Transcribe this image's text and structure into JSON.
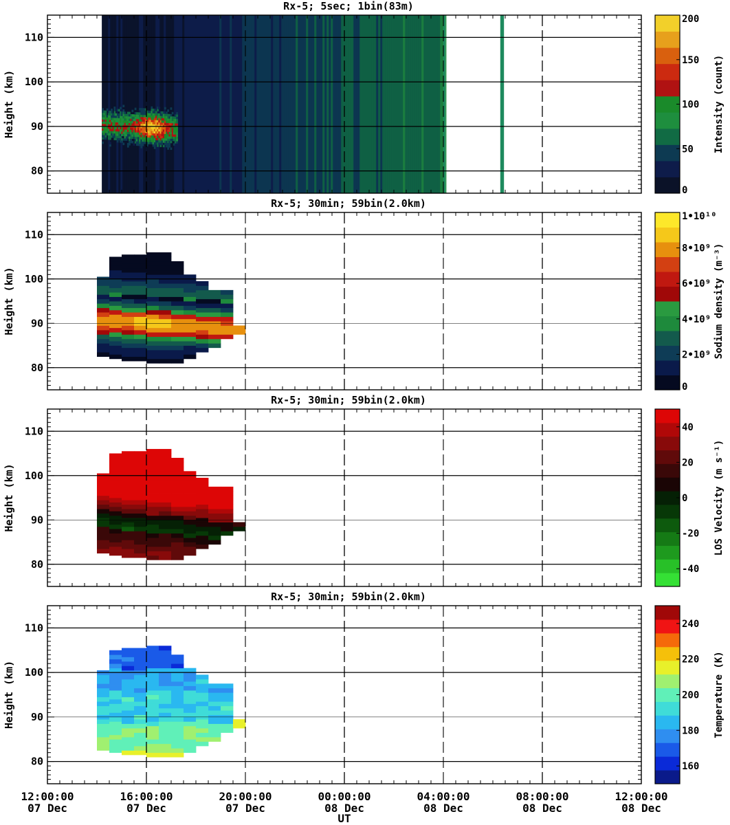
{
  "figure": {
    "x_label": "UT"
  },
  "colors": {
    "intensity_scale": [
      "#0b1228",
      "#0e1c4a",
      "#0d3a52",
      "#116b44",
      "#1e8e3e",
      "#1a8a2a",
      "#b01212",
      "#cc2a10",
      "#d9600e",
      "#e7a01c",
      "#f2d02a"
    ],
    "sodium_scale": [
      "#050a20",
      "#0a1a4a",
      "#0e3c56",
      "#135a4c",
      "#1e8a3c",
      "#2a9a40",
      "#a00808",
      "#c01810",
      "#d34012",
      "#e7900e",
      "#f5c81a",
      "#fde82a"
    ],
    "velocity_scale": [
      "#35e035",
      "#28c028",
      "#1e9a1e",
      "#157a15",
      "#0d5a0d",
      "#073807",
      "#052005",
      "#1a0505",
      "#3a0808",
      "#600a0a",
      "#880a0a",
      "#b00808",
      "#dd0606"
    ],
    "temperature_scale": [
      "#0a1a8a",
      "#0a2ad8",
      "#1a5ae8",
      "#2f8ef0",
      "#2ab8f0",
      "#3fdcd8",
      "#60f0b8",
      "#a0f070",
      "#e8f02a",
      "#f5c00a",
      "#f56a0a",
      "#f01414",
      "#a00808"
    ]
  },
  "chart_data": [
    {
      "type": "heatmap",
      "title": "Rx-5;  5sec; 1bin(83m)",
      "xlabel": "",
      "ylabel": "Height (km)",
      "ylim": [
        75,
        115
      ],
      "yticks": [
        80,
        90,
        100,
        110
      ],
      "xlim_hours": [
        0,
        24
      ],
      "x_ticks": [
        {
          "time": "12:00:00",
          "date": "07 Dec"
        },
        {
          "time": "16:00:00",
          "date": "07 Dec"
        },
        {
          "time": "20:00:00",
          "date": "07 Dec"
        },
        {
          "time": "00:00:00",
          "date": "08 Dec"
        },
        {
          "time": "04:00:00",
          "date": "08 Dec"
        },
        {
          "time": "08:00:00",
          "date": "08 Dec"
        },
        {
          "time": "12:00:00",
          "date": "08 Dec"
        }
      ],
      "data_coverage_hours": [
        [
          2.2,
          16.05
        ],
        [
          18.3,
          18.45
        ]
      ],
      "layer_peak": {
        "time_hours": 4.2,
        "height_km": 89,
        "max_count": 200
      },
      "colorbar": {
        "label": "Intensity (count)",
        "min": 0,
        "max": 200,
        "ticks": [
          "0",
          "50",
          "100",
          "150",
          "200"
        ]
      }
    },
    {
      "type": "heatmap",
      "title": "Rx-5; 30min; 59bin(2.0km)",
      "xlabel": "",
      "ylabel": "Height (km)",
      "ylim": [
        75,
        115
      ],
      "yticks": [
        80,
        90,
        100,
        110
      ],
      "xlim_hours": [
        0,
        24
      ],
      "columns": [
        {
          "t0": 2.0,
          "t1": 2.5,
          "bottom": 82.5,
          "top": 100.5
        },
        {
          "t0": 2.5,
          "t1": 3.0,
          "bottom": 82.0,
          "top": 104.5
        },
        {
          "t0": 3.0,
          "t1": 3.5,
          "bottom": 81.5,
          "top": 105.5
        },
        {
          "t0": 3.5,
          "t1": 4.0,
          "bottom": 81.5,
          "top": 105.5
        },
        {
          "t0": 4.0,
          "t1": 4.5,
          "bottom": 81.0,
          "top": 106.0
        },
        {
          "t0": 4.5,
          "t1": 5.0,
          "bottom": 81.0,
          "top": 105.5
        },
        {
          "t0": 5.0,
          "t1": 5.5,
          "bottom": 81.0,
          "top": 103.5
        },
        {
          "t0": 5.5,
          "t1": 6.0,
          "bottom": 82.0,
          "top": 100.5
        },
        {
          "t0": 6.0,
          "t1": 6.5,
          "bottom": 83.5,
          "top": 99.5
        },
        {
          "t0": 6.5,
          "t1": 7.0,
          "bottom": 84.5,
          "top": 97.5
        },
        {
          "t0": 7.0,
          "t1": 7.5,
          "bottom": 86.5,
          "top": 97.0
        },
        {
          "t0": 7.5,
          "t1": 8.0,
          "bottom": 87.5,
          "top": 89.5
        }
      ],
      "colorbar": {
        "label": "Sodium density (m⁻³)",
        "min": 0,
        "max": 10000000000.0,
        "ticks": [
          "0",
          "2•10⁹",
          "4•10⁹",
          "6•10⁹",
          "8•10⁹",
          "1•10¹⁰"
        ]
      }
    },
    {
      "type": "heatmap",
      "title": "Rx-5; 30min; 59bin(2.0km)",
      "xlabel": "",
      "ylabel": "Height (km)",
      "ylim": [
        75,
        115
      ],
      "yticks": [
        80,
        90,
        100,
        110
      ],
      "xlim_hours": [
        0,
        24
      ],
      "colorbar": {
        "label": "LOS Velocity (m s⁻¹)",
        "min": -50,
        "max": 50,
        "ticks": [
          "-40",
          "-20",
          "0",
          "20",
          "40"
        ]
      }
    },
    {
      "type": "heatmap",
      "title": "Rx-5; 30min; 59bin(2.0km)",
      "xlabel": "UT",
      "ylabel": "Height (km)",
      "ylim": [
        75,
        115
      ],
      "yticks": [
        80,
        90,
        100,
        110
      ],
      "xlim_hours": [
        0,
        24
      ],
      "colorbar": {
        "label": "Temperature (K)",
        "min": 150,
        "max": 250,
        "ticks": [
          "160",
          "180",
          "200",
          "220",
          "240"
        ]
      }
    }
  ]
}
